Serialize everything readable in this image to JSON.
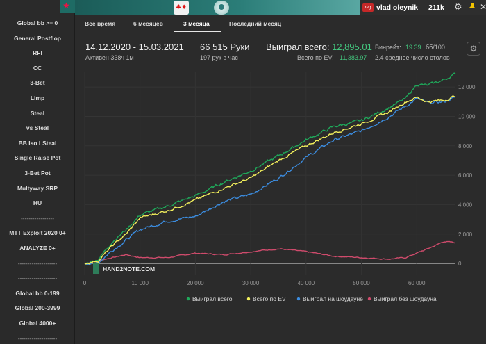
{
  "sidebar": {
    "items": [
      "Global bb >= 0",
      "General Postflop",
      "RFI",
      "CC",
      "3-Bet",
      "Limp",
      "Steal",
      "vs Steal",
      "BB Iso LSteal",
      "Single Raise Pot",
      "3-Bet Pot",
      "Multyway SRP",
      "HU",
      "-----------------",
      "MTT Exploit 2020 0+",
      "ANALYZE 0+",
      "--------------------",
      "--------------------",
      "Global bb 0-199",
      "Global 200-3999",
      "Global 4000+",
      "--------------------"
    ]
  },
  "header": {
    "user_badge": "reg",
    "username": "vlad oleynik",
    "balance": "211k"
  },
  "tabs": [
    {
      "label": "Все время"
    },
    {
      "label": "6 месяцев"
    },
    {
      "label": "3 месяца"
    },
    {
      "label": "Последний месяц"
    }
  ],
  "active_tab": "3 месяца",
  "stats": {
    "date_range": "14.12.2020 - 15.03.2021",
    "active": "Активен 338ч 1м",
    "hands": "66 515 Руки",
    "hands_per_hour": "197 рук в час",
    "won_total_label": "Выиграл всего:",
    "won_total_value": "12,895.01",
    "ev_label": "Всего по EV:",
    "ev_value": "11,383.97",
    "winrate_label": "Винрейт:",
    "winrate_value": "19.39",
    "winrate_unit": "бб/100",
    "tables": "2.4 среднее число столов"
  },
  "watermark": "HAND2NOTE.COM",
  "colors": {
    "won_total": "#1fa85a",
    "ev": "#f3f05c",
    "showdown": "#3c8de0",
    "nonshowdown": "#d04b6c",
    "accent_green": "#43c47d"
  },
  "chart_data": {
    "type": "line",
    "x_ticks": [
      0,
      10000,
      20000,
      30000,
      40000,
      50000,
      60000
    ],
    "x_tick_labels": [
      "0",
      "10 000",
      "20 000",
      "30 000",
      "40 000",
      "50 000",
      "60 000"
    ],
    "y_ticks": [
      0,
      2000,
      4000,
      6000,
      8000,
      10000,
      12000
    ],
    "y_tick_labels": [
      "0",
      "2 000",
      "4 000",
      "6 000",
      "8 000",
      "10 000",
      "12 000"
    ],
    "xlim": [
      0,
      67000
    ],
    "ylim": [
      -800,
      13000
    ],
    "legend_position": "bottom",
    "series": [
      {
        "name": "Выиграл всего",
        "x": [
          0,
          2500,
          5000,
          7500,
          10000,
          15000,
          20000,
          25000,
          30000,
          35000,
          40000,
          45000,
          50000,
          55000,
          58000,
          60000,
          62000,
          65000,
          67000
        ],
        "y": [
          0,
          300,
          1500,
          2300,
          3300,
          3900,
          4600,
          5500,
          6300,
          7300,
          8400,
          9300,
          9700,
          10600,
          11200,
          12200,
          12100,
          12500,
          12900
        ]
      },
      {
        "name": "Всего по EV",
        "x": [
          0,
          2500,
          5000,
          7500,
          10000,
          15000,
          20000,
          25000,
          30000,
          35000,
          40000,
          45000,
          50000,
          55000,
          58000,
          60000,
          62000,
          65000,
          67000
        ],
        "y": [
          0,
          200,
          1200,
          2000,
          3100,
          3600,
          4300,
          5100,
          5800,
          7000,
          8000,
          8900,
          9500,
          10300,
          11000,
          11300,
          11000,
          11100,
          11400
        ]
      },
      {
        "name": "Выиграл на шоудауне",
        "x": [
          0,
          2500,
          5000,
          7500,
          10000,
          15000,
          20000,
          25000,
          30000,
          35000,
          40000,
          45000,
          50000,
          55000,
          58000,
          60000,
          62000,
          65000,
          67000
        ],
        "y": [
          0,
          100,
          900,
          1600,
          2300,
          2900,
          3200,
          4200,
          4700,
          5800,
          7200,
          8400,
          9000,
          10000,
          10700,
          11200,
          10900,
          11000,
          11300
        ]
      },
      {
        "name": "Выиграл без шоудауна",
        "x": [
          0,
          2500,
          5000,
          7500,
          10000,
          15000,
          20000,
          25000,
          30000,
          35000,
          40000,
          45000,
          50000,
          55000,
          58000,
          60000,
          62000,
          65000,
          67000
        ],
        "y": [
          0,
          200,
          400,
          600,
          400,
          400,
          700,
          600,
          800,
          1000,
          800,
          500,
          400,
          300,
          400,
          700,
          1000,
          1500,
          1400
        ]
      }
    ]
  }
}
